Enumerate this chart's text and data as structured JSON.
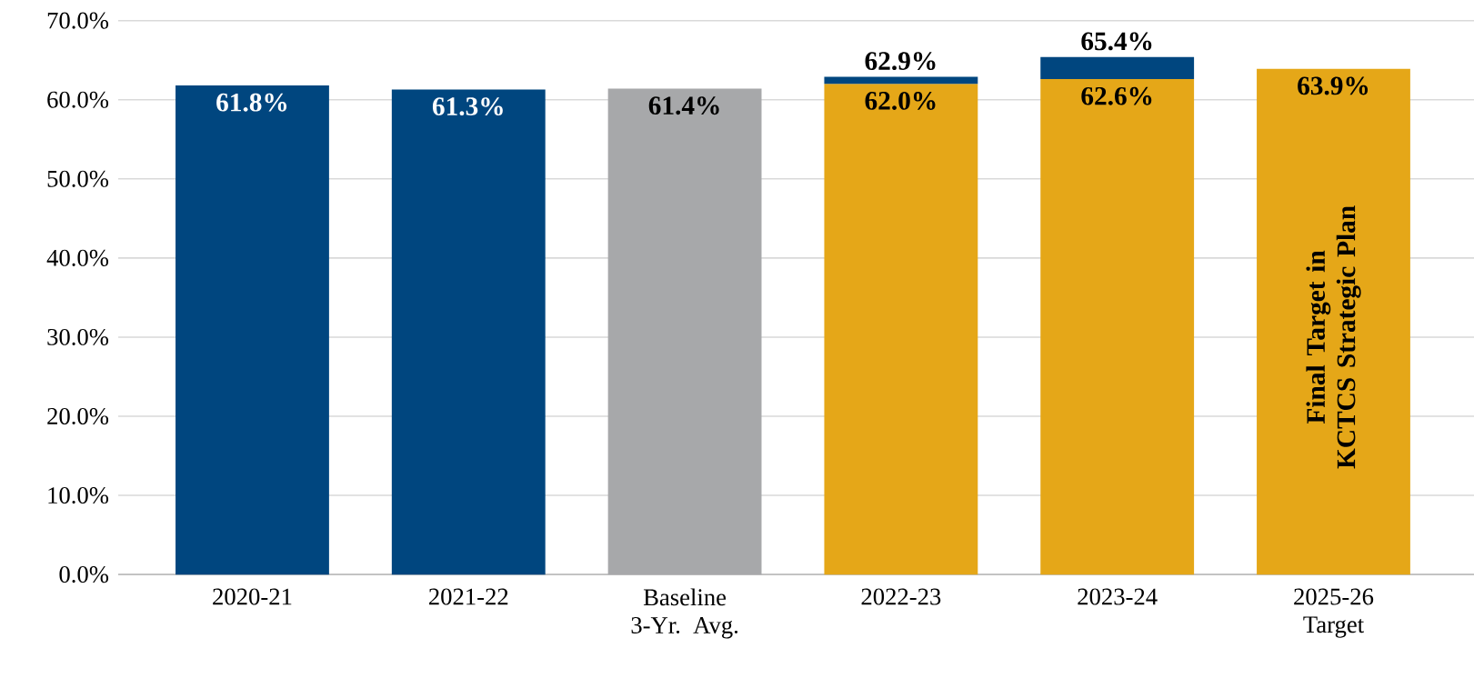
{
  "chart_data": {
    "type": "bar",
    "stacked": true,
    "categories": [
      "2020-21",
      "2021-22",
      "Baseline 3-Yr. Avg.",
      "2022-23",
      "2023-24",
      "2025-26 Target"
    ],
    "series": [
      {
        "colors": [
          "#00467f",
          "#00467f",
          "#a7a8aa",
          "#e5a718",
          "#e5a718",
          "#e5a718"
        ],
        "values": [
          61.8,
          61.3,
          61.4,
          62.0,
          62.6,
          63.9
        ],
        "value_labels": [
          "61.8%",
          "61.3%",
          "61.4%",
          "62.0%",
          "62.6%",
          "63.9%"
        ]
      },
      {
        "color": "#00467f",
        "values": [
          null,
          null,
          null,
          0.9,
          2.8,
          null
        ]
      }
    ],
    "totals": [
      null,
      null,
      null,
      "62.9%",
      "65.4%",
      null
    ],
    "ylim": [
      0,
      70
    ],
    "yticks": [
      {
        "value": 0,
        "label": "0.0%"
      },
      {
        "value": 10,
        "label": "10.0%"
      },
      {
        "value": 20,
        "label": "20.0%"
      },
      {
        "value": 30,
        "label": "30.0%"
      },
      {
        "value": 40,
        "label": "40.0%"
      },
      {
        "value": 50,
        "label": "50.0%"
      },
      {
        "value": 60,
        "label": "60.0%"
      },
      {
        "value": 70,
        "label": "70.0%"
      }
    ],
    "grid": "y",
    "annotations": [
      "Final Target in KCTCS Strategic Plan"
    ]
  }
}
